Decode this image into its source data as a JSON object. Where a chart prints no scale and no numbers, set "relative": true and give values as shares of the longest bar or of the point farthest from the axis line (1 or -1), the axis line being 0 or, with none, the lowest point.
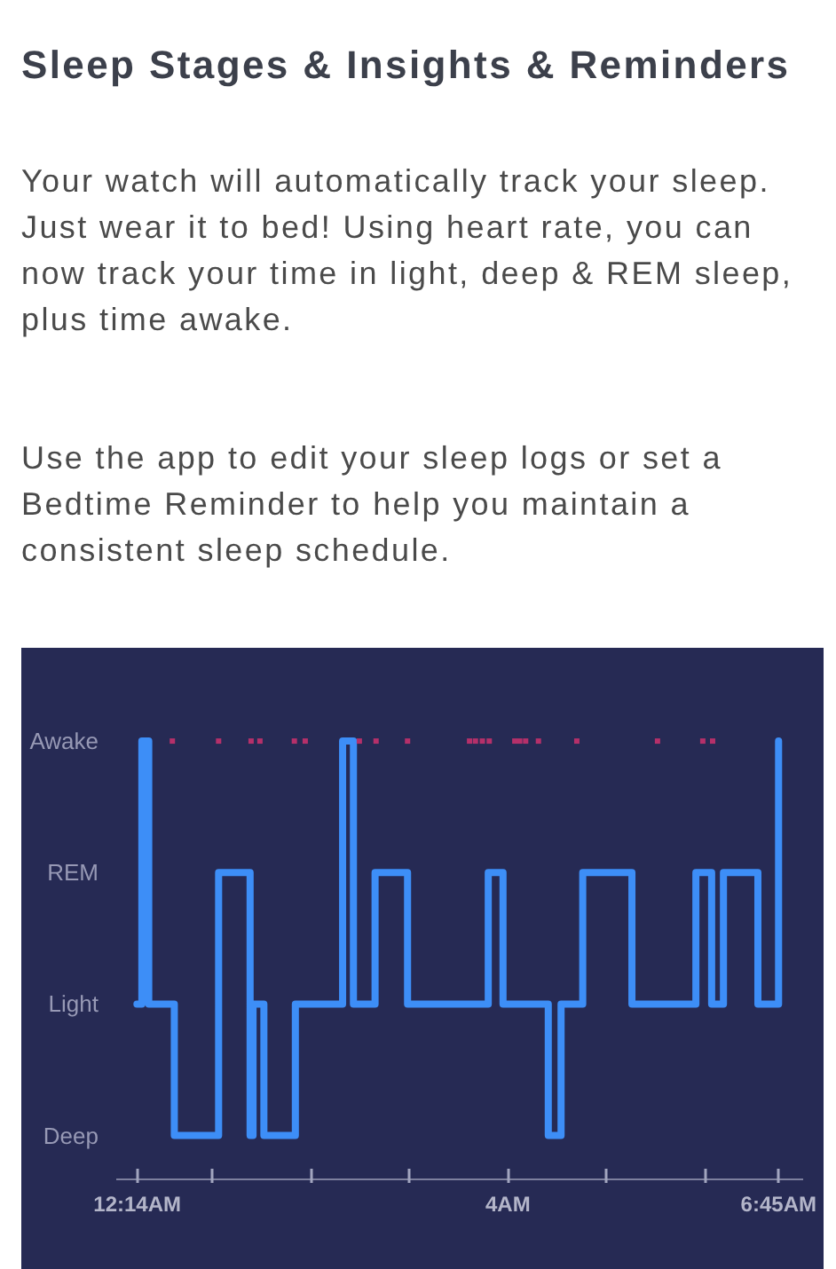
{
  "chart_data": {
    "type": "step",
    "relative": true,
    "title": "Sleep Stages & Insights & Reminders",
    "annotations": [
      "Your watch will automatically track your sleep. Just wear it to bed! Using heart rate, you can now track your time in light, deep & REM sleep, plus time awake.",
      "Use the app to edit your sleep logs or set a Bedtime Reminder to help you maintain a consistent sleep schedule."
    ],
    "xlim": [
      0.02,
      7.0
    ],
    "xticks": [
      {
        "value": 0.2333,
        "label": "12:14AM"
      },
      {
        "value": 1,
        "label": null
      },
      {
        "value": 2,
        "label": null
      },
      {
        "value": 3,
        "label": null
      },
      {
        "value": 4,
        "label": "4AM"
      },
      {
        "value": 5,
        "label": null
      },
      {
        "value": 6,
        "label": null
      },
      {
        "value": 6.75,
        "label": "6:45AM"
      }
    ],
    "y_categories": [
      "Awake",
      "REM",
      "Light",
      "Deep"
    ],
    "series": [
      {
        "color": "#3d8ef7",
        "x": [
          0.23,
          0.28,
          0.35,
          0.61,
          1.06,
          1.38,
          1.41,
          1.52,
          1.84,
          2.32,
          2.43,
          2.65,
          2.98,
          3.8,
          3.95,
          4.41,
          4.54,
          4.76,
          5.26,
          5.91,
          6.07,
          6.19,
          6.54,
          6.75
        ],
        "values": [
          0.4,
          1,
          0.4,
          0.1,
          0.7,
          0.1,
          0.4,
          0.1,
          0.4,
          1,
          0.4,
          0.7,
          0.4,
          0.7,
          0.4,
          0.1,
          0.4,
          0.7,
          0.4,
          0.7,
          0.4,
          0.7,
          0.4,
          1
        ]
      },
      {
        "type": "scatter",
        "marker": "square",
        "color": "#b5306a",
        "x": [
          0.59,
          1.06,
          1.39,
          1.48,
          1.83,
          1.94,
          2.49,
          2.66,
          2.98,
          3.61,
          3.67,
          3.74,
          3.81,
          4.07,
          4.12,
          4.18,
          4.31,
          4.7,
          5.52,
          5.98,
          6.08
        ],
        "values": [
          1,
          1,
          1,
          1,
          1,
          1,
          1,
          1,
          1,
          1,
          1,
          1,
          1,
          1,
          1,
          1,
          1,
          1,
          1,
          1,
          1
        ]
      }
    ]
  }
}
